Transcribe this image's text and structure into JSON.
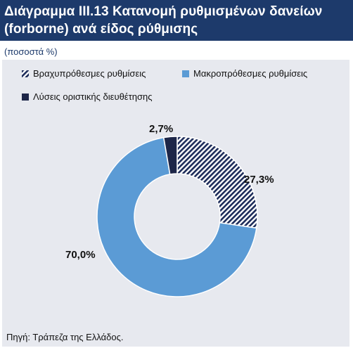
{
  "header": {
    "title": "Διάγραμμα ΙΙΙ.13 Κατανομή ρυθμισμένων δανείων (forborne) ανά είδος ρύθμισης",
    "subtitle": "(ποσοστά %)"
  },
  "source": "Πηγή: Τράπεζα της Ελλάδος.",
  "chart_data": {
    "type": "pie",
    "variant": "donut",
    "title": "Διάγραμμα ΙΙΙ.13 Κατανομή ρυθμισμένων δανείων (forborne) ανά είδος ρύθμισης",
    "unit": "ποσοστά %",
    "legend_position": "top",
    "slices": [
      {
        "name": "Βραχυπρόθεσμες ρυθμίσεις",
        "value": 27.3,
        "label": "27,3%",
        "color": "#1d2c5a",
        "pattern": "diagonal-hatch"
      },
      {
        "name": "Μακροπρόθεσμες ρυθμίσεις",
        "value": 70.0,
        "label": "70,0%",
        "color": "#5b9bd5",
        "pattern": "solid"
      },
      {
        "name": "Λύσεις οριστικής διευθέτησης",
        "value": 2.7,
        "label": "2,7%",
        "color": "#1d2648",
        "pattern": "solid"
      }
    ]
  }
}
